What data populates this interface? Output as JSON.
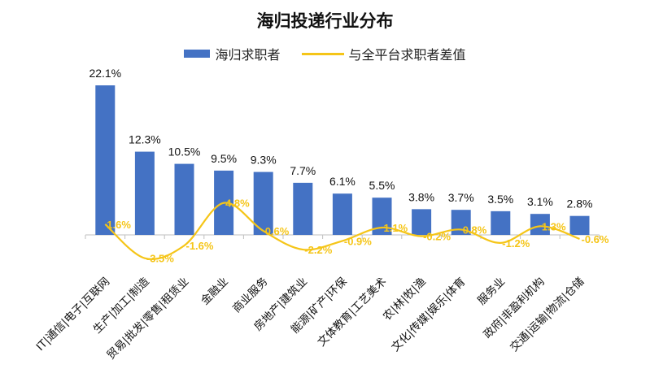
{
  "chart_data": {
    "type": "bar",
    "title": "海归投递行业分布",
    "categories": [
      "IT|通信|电子|互联网",
      "生产|加工|制造",
      "贸易|批发|零售|租赁业",
      "金融业",
      "商业服务",
      "房地产|建筑业",
      "能源|矿产|环保",
      "文体教育|工艺美术",
      "农|林|牧|渔",
      "文化|传媒|娱乐|体育",
      "服务业",
      "政府|非盈利机构",
      "交通|运输|物流|仓储"
    ],
    "series": [
      {
        "name": "海归求职者",
        "type": "bar",
        "values": [
          22.1,
          12.3,
          10.5,
          9.5,
          9.3,
          7.7,
          6.1,
          5.5,
          3.8,
          3.7,
          3.5,
          3.1,
          2.8
        ],
        "labels": [
          "22.1%",
          "12.3%",
          "10.5%",
          "9.5%",
          "9.3%",
          "7.7%",
          "6.1%",
          "5.5%",
          "3.8%",
          "3.7%",
          "3.5%",
          "3.1%",
          "2.8%"
        ],
        "color": "#4472c4"
      },
      {
        "name": "与全平台求职者差值",
        "type": "line",
        "smooth": true,
        "values": [
          1.6,
          -3.5,
          -1.6,
          4.8,
          0.6,
          -2.2,
          -0.9,
          1.1,
          -0.2,
          0.8,
          -1.2,
          1.3,
          -0.6
        ],
        "labels": [
          "1.6%",
          "-3.5%",
          "-1.6%",
          "4.8%",
          "0.6%",
          "-2.2%",
          "-0.9%",
          "1.1%",
          "-0.2%",
          "0.8%",
          "-1.2%",
          "1.3%",
          "-0.6%"
        ],
        "color": "#f5c518",
        "label_color": "#f5c518"
      }
    ],
    "legend": "top-center",
    "grid": false,
    "unit": "%"
  }
}
